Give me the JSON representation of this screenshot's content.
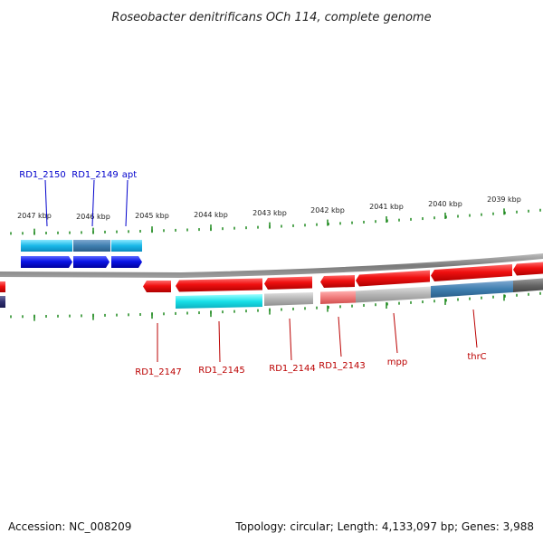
{
  "title": "Roseobacter denitrificans OCh 114, complete genome",
  "footer": {
    "accession": "Accession: NC_008209",
    "topology": "Topology: circular; Length: 4,133,097 bp; Genes: 3,988"
  },
  "upper_scale": [
    {
      "label": "2047 kbp"
    },
    {
      "label": "2046 kbp"
    },
    {
      "label": "2045 kbp"
    },
    {
      "label": "2044 kbp"
    },
    {
      "label": "2043 kbp"
    },
    {
      "label": "2042 kbp"
    },
    {
      "label": "2041 kbp"
    },
    {
      "label": "2040 kbp"
    },
    {
      "label": "2039 kbp"
    }
  ],
  "top_gene_labels": [
    {
      "text": "RD1_2150"
    },
    {
      "text": "RD1_2149"
    },
    {
      "text": "apt"
    }
  ],
  "bottom_gene_labels": [
    {
      "text": "RD1_2147"
    },
    {
      "text": "RD1_2145"
    },
    {
      "text": "RD1_2144"
    },
    {
      "text": "RD1_2143"
    },
    {
      "text": "mpp"
    },
    {
      "text": "thrC"
    }
  ],
  "colors": {
    "forward_cds": "#0a14e6",
    "forward_cog": "#1ab8e8",
    "forward_cog_alt": "#3f7fb0",
    "reverse_cds": "#e60f0f",
    "reverse_cog": "#18d8e0",
    "reverse_cog_grey": "#b0b0b0",
    "reverse_cog_blue": "#4a7fb5",
    "backbone": "#8a8a8a",
    "tick": "#1f8a1f",
    "label_forward": "#0000cc",
    "label_reverse": "#bb0000"
  }
}
